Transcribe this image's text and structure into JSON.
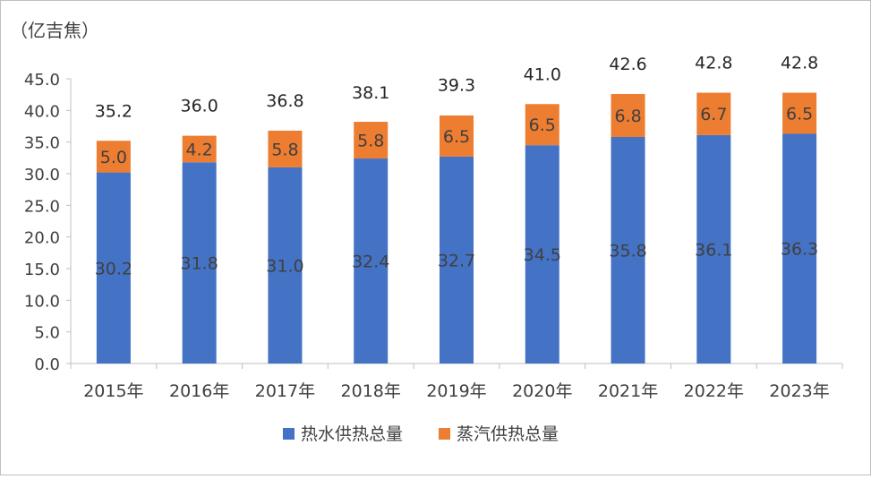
{
  "chart_data": {
    "type": "bar",
    "stacked": true,
    "unit_label": "（亿吉焦）",
    "categories": [
      "2015年",
      "2016年",
      "2017年",
      "2018年",
      "2019年",
      "2020年",
      "2021年",
      "2022年",
      "2023年"
    ],
    "series": [
      {
        "name": "热水供热总量",
        "color": "#4472C4",
        "values": [
          30.2,
          31.8,
          31.0,
          32.4,
          32.7,
          34.5,
          35.8,
          36.1,
          36.3
        ],
        "labels": [
          "30.2",
          "31.8",
          "31.0",
          "32.4",
          "32.7",
          "34.5",
          "35.8",
          "36.1",
          "36.3"
        ]
      },
      {
        "name": "蒸汽供热总量",
        "color": "#ED7D31",
        "values": [
          5.0,
          4.2,
          5.8,
          5.8,
          6.5,
          6.5,
          6.8,
          6.7,
          6.5
        ],
        "labels": [
          "5.0",
          "4.2",
          "5.8",
          "5.8",
          "6.5",
          "6.5",
          "6.8",
          "6.7",
          "6.5"
        ]
      }
    ],
    "totals": [
      35.2,
      36.0,
      36.8,
      38.1,
      39.3,
      41.0,
      42.6,
      42.8,
      42.8
    ],
    "total_labels": [
      "35.2",
      "36.0",
      "36.8",
      "38.1",
      "39.3",
      "41.0",
      "42.6",
      "42.8",
      "42.8"
    ],
    "ylim": [
      0,
      45
    ],
    "ytick_step": 5,
    "ytick_labels": [
      "0.0",
      "5.0",
      "10.0",
      "15.0",
      "20.0",
      "25.0",
      "30.0",
      "35.0",
      "40.0",
      "45.0"
    ],
    "grid": false,
    "legend_position": "bottom-center"
  }
}
